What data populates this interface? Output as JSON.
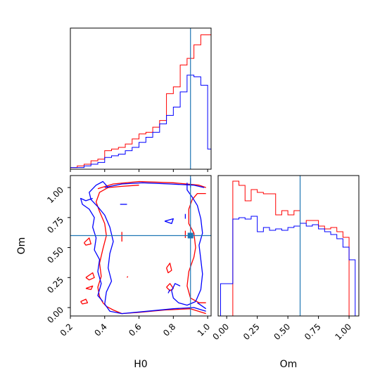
{
  "chart_data": {
    "type": "corner",
    "parameters": [
      "H0",
      "Om"
    ],
    "truths": {
      "H0": 0.9,
      "Om": 0.6
    },
    "colors": {
      "series_a": "#ff0000",
      "series_b": "#0000ff",
      "truth": "#1f77b4"
    },
    "grid": false,
    "legend": "none",
    "panels": [
      {
        "id": "hist-H0",
        "type": "step-histogram",
        "xlim": [
          0.2,
          1.02
        ],
        "yticks_visible": false,
        "xticklabels_visible": false,
        "bin_edges": [
          0.2,
          0.24,
          0.28,
          0.32,
          0.36,
          0.4,
          0.44,
          0.48,
          0.52,
          0.56,
          0.6,
          0.64,
          0.68,
          0.72,
          0.76,
          0.8,
          0.84,
          0.88,
          0.92,
          0.96,
          1.0,
          1.02
        ],
        "series": [
          {
            "color_key": "series_a",
            "counts": [
              1,
              2,
              3,
              5,
              6,
              11,
              12,
              13,
              15,
              18,
              21,
              22,
              25,
              29,
              45,
              49,
              62,
              66,
              74,
              80,
              80
            ]
          },
          {
            "color_key": "series_b",
            "counts": [
              1,
              1,
              2,
              3,
              4,
              7,
              8,
              9,
              11,
              13,
              16,
              19,
              22,
              27,
              32,
              37,
              46,
              56,
              55,
              50,
              12
            ]
          }
        ],
        "ymax": 84
      },
      {
        "id": "hist-Om",
        "type": "step-histogram",
        "xlim": [
          -0.07,
          1.08
        ],
        "yticks_visible": false,
        "xlabel": "Om",
        "xticks": [
          0.0,
          0.25,
          0.5,
          0.75,
          1.0
        ],
        "xticklabels": [
          "0.00",
          "0.25",
          "0.50",
          "0.75",
          "1.00"
        ],
        "bin_edges": [
          -0.05,
          0.0,
          0.05,
          0.1,
          0.15,
          0.2,
          0.25,
          0.3,
          0.35,
          0.4,
          0.45,
          0.5,
          0.55,
          0.6,
          0.65,
          0.7,
          0.75,
          0.8,
          0.85,
          0.9,
          0.95,
          1.0,
          1.05
        ],
        "series": [
          {
            "color_key": "series_a",
            "counts": [
              0,
              0,
              96,
              93,
              82,
              90,
              88,
              87,
              87,
              72,
              75,
              72,
              75,
              66,
              68,
              68,
              64,
              62,
              63,
              60,
              56,
              0
            ]
          },
          {
            "color_key": "series_b",
            "counts": [
              23,
              23,
              69,
              70,
              69,
              71,
              60,
              63,
              61,
              62,
              61,
              63,
              64,
              66,
              64,
              65,
              62,
              60,
              58,
              55,
              49,
              40
            ]
          }
        ],
        "ymax": 100
      },
      {
        "id": "contour-H0-Om",
        "type": "contour",
        "xlim": [
          0.2,
          1.02
        ],
        "ylim": [
          -0.07,
          1.1
        ],
        "xlabel": "H0",
        "ylabel": "Om",
        "xticks": [
          0.2,
          0.4,
          0.6,
          0.8,
          1.0
        ],
        "xticklabels": [
          "0.2",
          "0.4",
          "0.6",
          "0.8",
          "1.0"
        ],
        "yticks": [
          0.0,
          0.25,
          0.5,
          0.75,
          1.0
        ],
        "yticklabels": [
          "0.00",
          "0.25",
          "0.50",
          "0.75",
          "1.00"
        ],
        "series": [
          {
            "color_key": "series_a",
            "contours": [
              [
                [
                  0.36,
                  0.99
                ],
                [
                  0.45,
                  1.03
                ],
                [
                  0.6,
                  1.05
                ],
                [
                  0.8,
                  1.04
                ],
                [
                  0.95,
                  1.02
                ],
                [
                  0.99,
                  1.0
                ]
              ],
              [
                [
                  0.99,
                  0.95
                ],
                [
                  0.94,
                  0.95
                ],
                [
                  0.91,
                  0.9
                ],
                [
                  0.89,
                  0.82
                ],
                [
                  0.89,
                  0.7
                ],
                [
                  0.92,
                  0.62
                ],
                [
                  0.93,
                  0.5
                ],
                [
                  0.92,
                  0.42
                ],
                [
                  0.89,
                  0.3
                ],
                [
                  0.88,
                  0.18
                ],
                [
                  0.9,
                  0.08
                ],
                [
                  0.95,
                  0.04
                ],
                [
                  0.99,
                  0.04
                ]
              ],
              [
                [
                  0.99,
                  -0.05
                ],
                [
                  0.9,
                  -0.01
                ],
                [
                  0.75,
                  -0.02
                ],
                [
                  0.6,
                  -0.04
                ],
                [
                  0.5,
                  -0.05
                ],
                [
                  0.45,
                  -0.02
                ],
                [
                  0.41,
                  0.01
                ],
                [
                  0.39,
                  0.04
                ],
                [
                  0.37,
                  0.09
                ],
                [
                  0.36,
                  0.17
                ],
                [
                  0.38,
                  0.26
                ],
                [
                  0.37,
                  0.37
                ],
                [
                  0.39,
                  0.49
                ],
                [
                  0.41,
                  0.6
                ],
                [
                  0.4,
                  0.7
                ],
                [
                  0.37,
                  0.8
                ],
                [
                  0.35,
                  0.88
                ],
                [
                  0.37,
                  0.96
                ],
                [
                  0.42,
                  1.0
                ],
                [
                  0.5,
                  1.01
                ],
                [
                  0.6,
                  1.02
                ]
              ],
              [
                [
                  0.26,
                  0.05
                ],
                [
                  0.29,
                  0.07
                ],
                [
                  0.3,
                  0.04
                ],
                [
                  0.27,
                  0.03
                ],
                [
                  0.26,
                  0.05
                ]
              ],
              [
                [
                  0.29,
                  0.16
                ],
                [
                  0.33,
                  0.18
                ],
                [
                  0.32,
                  0.15
                ],
                [
                  0.29,
                  0.16
                ]
              ],
              [
                [
                  0.29,
                  0.25
                ],
                [
                  0.33,
                  0.29
                ],
                [
                  0.34,
                  0.25
                ],
                [
                  0.31,
                  0.23
                ],
                [
                  0.29,
                  0.25
                ]
              ],
              [
                [
                  0.28,
                  0.54
                ],
                [
                  0.31,
                  0.58
                ],
                [
                  0.32,
                  0.53
                ],
                [
                  0.29,
                  0.52
                ],
                [
                  0.28,
                  0.54
                ]
              ],
              [
                [
                  0.5,
                  0.55
                ],
                [
                  0.5,
                  0.63
                ]
              ],
              [
                [
                  0.53,
                  0.25
                ],
                [
                  0.535,
                  0.26
                ]
              ],
              [
                [
                  0.76,
                  0.17
                ],
                [
                  0.78,
                  0.2
                ],
                [
                  0.8,
                  0.16
                ],
                [
                  0.78,
                  0.14
                ],
                [
                  0.76,
                  0.17
                ]
              ],
              [
                [
                  0.76,
                  0.33
                ],
                [
                  0.78,
                  0.37
                ],
                [
                  0.79,
                  0.31
                ],
                [
                  0.77,
                  0.29
                ],
                [
                  0.76,
                  0.33
                ]
              ],
              [
                [
                  0.87,
                  0.58
                ],
                [
                  0.87,
                  0.64
                ]
              ]
            ]
          },
          {
            "color_key": "series_b",
            "contours": [
              [
                [
                  0.4,
                  1.0
                ],
                [
                  0.5,
                  1.03
                ],
                [
                  0.62,
                  1.04
                ],
                [
                  0.78,
                  1.03
                ],
                [
                  0.92,
                  1.02
                ],
                [
                  0.98,
                  1.0
                ]
              ],
              [
                [
                  0.99,
                  -0.03
                ],
                [
                  0.92,
                  0.0
                ],
                [
                  0.8,
                  -0.01
                ],
                [
                  0.65,
                  -0.03
                ],
                [
                  0.5,
                  -0.05
                ],
                [
                  0.43,
                  -0.03
                ],
                [
                  0.4,
                  0.03
                ],
                [
                  0.41,
                  0.13
                ],
                [
                  0.44,
                  0.22
                ],
                [
                  0.42,
                  0.33
                ],
                [
                  0.43,
                  0.45
                ],
                [
                  0.45,
                  0.55
                ],
                [
                  0.43,
                  0.67
                ],
                [
                  0.4,
                  0.77
                ],
                [
                  0.36,
                  0.84
                ],
                [
                  0.32,
                  0.9
                ],
                [
                  0.31,
                  0.96
                ],
                [
                  0.35,
                  1.02
                ],
                [
                  0.39,
                  1.05
                ],
                [
                  0.42,
                  1.0
                ]
              ],
              [
                [
                  0.33,
                  0.91
                ],
                [
                  0.29,
                  0.89
                ],
                [
                  0.26,
                  0.91
                ],
                [
                  0.27,
                  0.86
                ],
                [
                  0.31,
                  0.82
                ],
                [
                  0.34,
                  0.75
                ],
                [
                  0.33,
                  0.67
                ],
                [
                  0.35,
                  0.58
                ],
                [
                  0.34,
                  0.48
                ],
                [
                  0.37,
                  0.4
                ],
                [
                  0.36,
                  0.3
                ],
                [
                  0.38,
                  0.2
                ],
                [
                  0.36,
                  0.1
                ],
                [
                  0.39,
                  0.05
                ]
              ],
              [
                [
                  0.88,
                  1.04
                ],
                [
                  0.88,
                  0.98
                ],
                [
                  0.91,
                  0.92
                ],
                [
                  0.94,
                  0.85
                ],
                [
                  0.96,
                  0.74
                ],
                [
                  0.97,
                  0.62
                ],
                [
                  0.95,
                  0.52
                ],
                [
                  0.96,
                  0.4
                ],
                [
                  0.97,
                  0.28
                ],
                [
                  0.96,
                  0.15
                ],
                [
                  0.93,
                  0.05
                ],
                [
                  0.88,
                  0.02
                ],
                [
                  0.83,
                  0.04
                ],
                [
                  0.8,
                  0.08
                ],
                [
                  0.79,
                  0.14
                ],
                [
                  0.81,
                  0.2
                ],
                [
                  0.84,
                  0.18
                ]
              ],
              [
                [
                  0.94,
                  0.04
                ],
                [
                  0.99,
                  -0.01
                ]
              ],
              [
                [
                  0.49,
                  0.86
                ],
                [
                  0.53,
                  0.86
                ]
              ],
              [
                [
                  0.75,
                  0.72
                ],
                [
                  0.8,
                  0.74
                ],
                [
                  0.79,
                  0.7
                ],
                [
                  0.75,
                  0.72
                ]
              ],
              [
                [
                  0.77,
                  0.12
                ],
                [
                  0.78,
                  0.15
                ]
              ],
              [
                [
                  0.87,
                  0.78
                ],
                [
                  0.87,
                  0.74
                ]
              ],
              [
                [
                  0.9,
                  1.08
                ],
                [
                  0.9,
                  1.0
                ]
              ]
            ]
          }
        ]
      }
    ]
  }
}
